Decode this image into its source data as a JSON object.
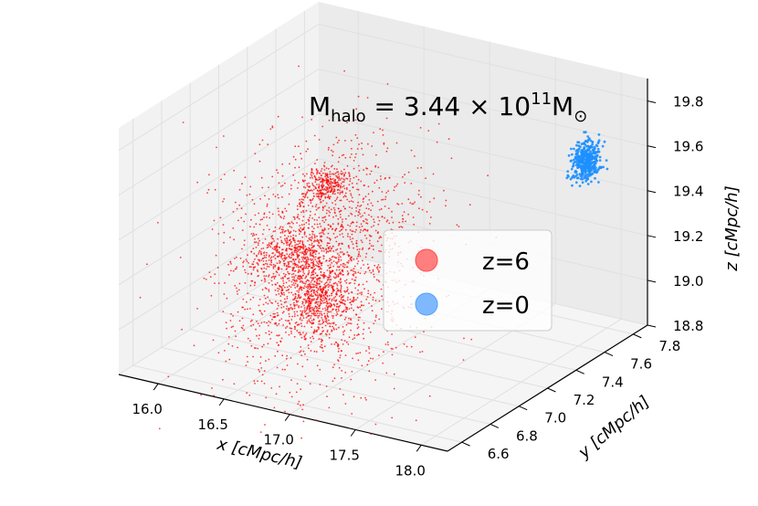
{
  "chart_data": {
    "type": "scatter",
    "projection": "3d",
    "title": {
      "text": "M",
      "subscript": "halo",
      "mid": " = 3.44 × 10",
      "superscript": "11",
      "tail": "M",
      "sun_subscript": "⊙"
    },
    "xlabel": "x [cMpc/h]",
    "ylabel": "y [cMpc/h]",
    "zlabel": "z [cMpc/h]",
    "xlim": [
      15.7,
      18.2
    ],
    "ylim": [
      6.5,
      7.9
    ],
    "zlim": [
      18.8,
      19.9
    ],
    "xticks": [
      "16.0",
      "16.5",
      "17.0",
      "17.5",
      "18.0"
    ],
    "yticks": [
      "6.6",
      "6.8",
      "7.0",
      "7.2",
      "7.4",
      "7.6",
      "7.8"
    ],
    "zticks": [
      "18.8",
      "19.0",
      "19.2",
      "19.4",
      "19.6",
      "19.8"
    ],
    "grid": true,
    "legend_position": "center-right",
    "series": [
      {
        "name": "z=6",
        "color": "#ff0000",
        "legend_color": "#ff7f7f",
        "point_count": 3000,
        "distribution": "diffuse cloud",
        "center": [
          16.65,
          7.05,
          19.2
        ],
        "spread": [
          0.35,
          0.25,
          0.3
        ]
      },
      {
        "name": "z=0",
        "color": "#1e90ff",
        "legend_color": "#7fb8ff",
        "point_count": 400,
        "distribution": "compact clump",
        "center": [
          17.95,
          7.7,
          19.58
        ],
        "spread": [
          0.035,
          0.035,
          0.04
        ]
      }
    ]
  }
}
